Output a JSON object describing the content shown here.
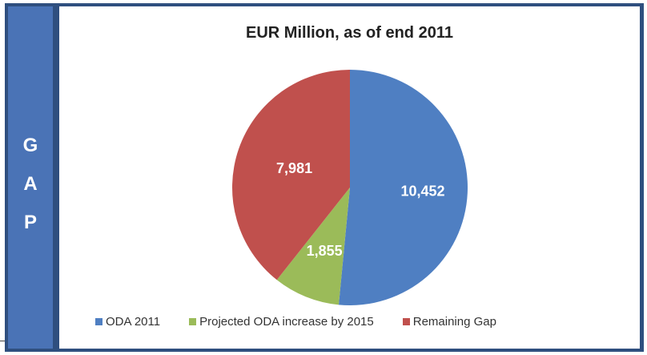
{
  "side_label": [
    "G",
    "A",
    "P"
  ],
  "colors": {
    "side_panel": "#4a73b6",
    "frame": "#2f4f7f"
  },
  "chart_data": {
    "type": "pie",
    "title": "EUR Million, as of end 2011",
    "slices": [
      {
        "name": "ODA 2011",
        "value": 10452,
        "label": "10,452",
        "color": "#4f7fc2"
      },
      {
        "name": "Projected ODA increase by 2015",
        "value": 1855,
        "label": "1,855",
        "color": "#9bbb59"
      },
      {
        "name": "Remaining Gap",
        "value": 7981,
        "label": "7,981",
        "color": "#c0504d"
      }
    ],
    "legend_position": "bottom"
  }
}
